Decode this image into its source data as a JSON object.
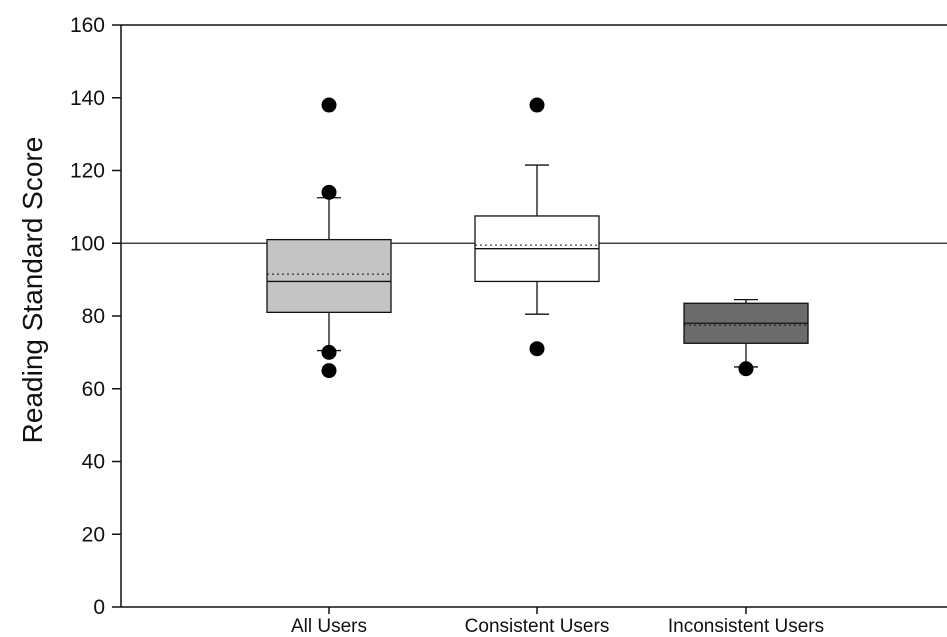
{
  "chart_data": {
    "type": "box",
    "ylabel": "Reading Standard Score",
    "ylim": [
      0,
      160
    ],
    "yticks": [
      0,
      20,
      40,
      60,
      80,
      100,
      120,
      140,
      160
    ],
    "categories": [
      "All Users",
      "Consistent Users",
      "Inconsistent Users"
    ],
    "reference_line": 100,
    "grid": false,
    "boxes": [
      {
        "category": "All Users",
        "whisker_low": 70.5,
        "q1": 81,
        "median": 89.5,
        "mean": 91.5,
        "q3": 101,
        "whisker_high": 112.5,
        "outliers": [
          138,
          114,
          70,
          65
        ],
        "fill": "#c4c4c4"
      },
      {
        "category": "Consistent Users",
        "whisker_low": 80.5,
        "q1": 89.5,
        "median": 98.5,
        "mean": 99.5,
        "q3": 107.5,
        "whisker_high": 121.5,
        "outliers": [
          138,
          71
        ],
        "fill": "#ffffff"
      },
      {
        "category": "Inconsistent Users",
        "whisker_low": 66,
        "q1": 72.5,
        "median": 78,
        "mean": 77.5,
        "q3": 83.5,
        "whisker_high": 84.5,
        "outliers": [
          65.5
        ],
        "fill": "#6c6c6c"
      }
    ]
  }
}
